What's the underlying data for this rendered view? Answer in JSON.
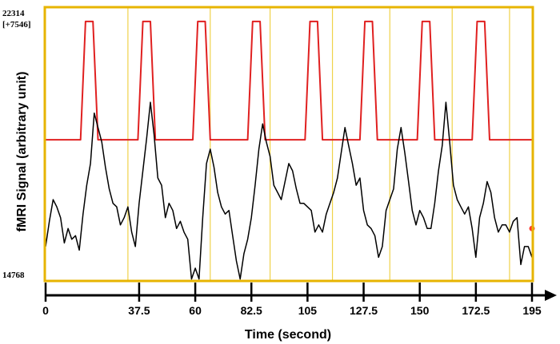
{
  "chart_data": {
    "type": "line",
    "title": "",
    "ylabel": "fMRI Signal (arbitrary unit)",
    "xlabel": "Time (second)",
    "y_max_label": "22314",
    "y_range_label": "[+7546]",
    "y_min_label": "14768",
    "ylim": [
      14768,
      22314
    ],
    "xlim": [
      0,
      195
    ],
    "x_ticks": [
      0,
      37.5,
      60,
      82.5,
      105,
      127.5,
      150,
      172.5,
      195
    ],
    "x_tick_labels": [
      "0",
      "37.5",
      "60",
      "82.5",
      "105",
      "127.5",
      "150",
      "172.5",
      "195"
    ],
    "stimulus_onsets": [
      33,
      66,
      90,
      115,
      138,
      163,
      186
    ],
    "stimulus_period": 22.5,
    "marker_color": "#ff3b30",
    "series": [
      {
        "name": "stimulus",
        "color": "#e02020",
        "points": [
          [
            0,
            18660
          ],
          [
            14,
            18660
          ],
          [
            16,
            21940
          ],
          [
            19,
            21940
          ],
          [
            21,
            18660
          ],
          [
            37,
            18660
          ],
          [
            39,
            21940
          ],
          [
            42,
            21940
          ],
          [
            44,
            18660
          ],
          [
            59,
            18660
          ],
          [
            61,
            21940
          ],
          [
            64,
            21940
          ],
          [
            66,
            18660
          ],
          [
            81,
            18660
          ],
          [
            83,
            21940
          ],
          [
            86,
            21940
          ],
          [
            88,
            18660
          ],
          [
            104,
            18660
          ],
          [
            106,
            21940
          ],
          [
            109,
            21940
          ],
          [
            111,
            18660
          ],
          [
            126,
            18660
          ],
          [
            128,
            21940
          ],
          [
            131,
            21940
          ],
          [
            133,
            18660
          ],
          [
            149,
            18660
          ],
          [
            151,
            21940
          ],
          [
            154,
            21940
          ],
          [
            156,
            18660
          ],
          [
            171,
            18660
          ],
          [
            173,
            21940
          ],
          [
            176,
            21940
          ],
          [
            178,
            18660
          ],
          [
            195,
            18660
          ]
        ]
      },
      {
        "name": "fMRI signal",
        "color": "#000000",
        "points": [
          [
            0,
            15700
          ],
          [
            1.5,
            16400
          ],
          [
            3,
            17000
          ],
          [
            4.5,
            16800
          ],
          [
            6,
            16500
          ],
          [
            7.5,
            15800
          ],
          [
            9,
            16200
          ],
          [
            10.5,
            15900
          ],
          [
            12,
            16000
          ],
          [
            13.5,
            15600
          ],
          [
            15,
            16600
          ],
          [
            16.5,
            17400
          ],
          [
            18,
            18000
          ],
          [
            19.5,
            19400
          ],
          [
            21,
            19000
          ],
          [
            22.5,
            18600
          ],
          [
            24,
            17900
          ],
          [
            25.5,
            17300
          ],
          [
            27,
            16900
          ],
          [
            28.5,
            16800
          ],
          [
            30,
            16300
          ],
          [
            31.5,
            16500
          ],
          [
            33,
            16800
          ],
          [
            34.5,
            16100
          ],
          [
            36,
            15700
          ],
          [
            37.5,
            16900
          ],
          [
            39,
            17800
          ],
          [
            40.5,
            18700
          ],
          [
            42,
            19700
          ],
          [
            43.5,
            18800
          ],
          [
            45,
            17600
          ],
          [
            46.5,
            17400
          ],
          [
            48,
            16500
          ],
          [
            49.5,
            16900
          ],
          [
            51,
            16700
          ],
          [
            52.5,
            16200
          ],
          [
            54,
            16400
          ],
          [
            55.5,
            16100
          ],
          [
            57,
            15900
          ],
          [
            58.5,
            14800
          ],
          [
            60,
            15100
          ],
          [
            61.5,
            14800
          ],
          [
            63,
            16500
          ],
          [
            64.5,
            18000
          ],
          [
            66,
            18400
          ],
          [
            67.5,
            17900
          ],
          [
            69,
            17200
          ],
          [
            70.5,
            16800
          ],
          [
            72,
            16600
          ],
          [
            73.5,
            16700
          ],
          [
            75,
            16000
          ],
          [
            76.5,
            15300
          ],
          [
            78,
            14800
          ],
          [
            79.5,
            15500
          ],
          [
            81,
            15900
          ],
          [
            82.5,
            16500
          ],
          [
            84,
            17400
          ],
          [
            85.5,
            18400
          ],
          [
            87,
            19100
          ],
          [
            88.5,
            18600
          ],
          [
            90,
            18200
          ],
          [
            91.5,
            17400
          ],
          [
            93,
            17200
          ],
          [
            94.5,
            17000
          ],
          [
            96,
            17500
          ],
          [
            97.5,
            18000
          ],
          [
            99,
            17800
          ],
          [
            100.5,
            17300
          ],
          [
            102,
            16900
          ],
          [
            103.5,
            16900
          ],
          [
            105,
            16800
          ],
          [
            106.5,
            16700
          ],
          [
            108,
            16100
          ],
          [
            109.5,
            16300
          ],
          [
            111,
            16100
          ],
          [
            112.5,
            16600
          ],
          [
            114,
            16900
          ],
          [
            115.5,
            17200
          ],
          [
            117,
            17600
          ],
          [
            118.5,
            18300
          ],
          [
            120,
            19000
          ],
          [
            121.5,
            18500
          ],
          [
            123,
            18000
          ],
          [
            124.5,
            17400
          ],
          [
            126,
            17600
          ],
          [
            127.5,
            16700
          ],
          [
            129,
            16300
          ],
          [
            130.5,
            16200
          ],
          [
            132,
            16000
          ],
          [
            133.5,
            15400
          ],
          [
            135,
            15700
          ],
          [
            136.5,
            16700
          ],
          [
            138,
            17000
          ],
          [
            139.5,
            17300
          ],
          [
            141,
            18400
          ],
          [
            142.5,
            19000
          ],
          [
            144,
            18300
          ],
          [
            145.5,
            17500
          ],
          [
            147,
            16700
          ],
          [
            148.5,
            16300
          ],
          [
            150,
            16700
          ],
          [
            151.5,
            16500
          ],
          [
            153,
            16200
          ],
          [
            154.5,
            16200
          ],
          [
            156,
            16900
          ],
          [
            157.5,
            17800
          ],
          [
            159,
            18500
          ],
          [
            160.5,
            19700
          ],
          [
            162,
            18600
          ],
          [
            163.5,
            17400
          ],
          [
            165,
            17000
          ],
          [
            166.5,
            16800
          ],
          [
            168,
            16600
          ],
          [
            169.5,
            16800
          ],
          [
            171,
            16200
          ],
          [
            172.5,
            15400
          ],
          [
            174,
            16500
          ],
          [
            175.5,
            16900
          ],
          [
            177,
            17500
          ],
          [
            178.5,
            17200
          ],
          [
            180,
            16500
          ],
          [
            181.5,
            16100
          ],
          [
            183,
            16300
          ],
          [
            184.5,
            16300
          ],
          [
            186,
            16100
          ],
          [
            187.5,
            16400
          ],
          [
            189,
            16500
          ],
          [
            190.5,
            15200
          ],
          [
            192,
            15700
          ],
          [
            193.5,
            15700
          ],
          [
            195,
            15400
          ]
        ]
      }
    ]
  }
}
